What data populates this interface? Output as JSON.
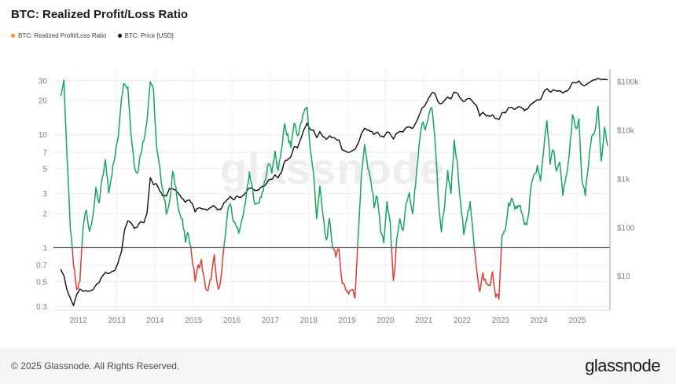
{
  "page": {
    "title": "BTC: Realized Profit/Loss Ratio",
    "watermark": "glassnode",
    "footer": {
      "copyright": "© 2025 Glassnode. All Rights Reserved.",
      "brand": "glassnode"
    }
  },
  "legend": {
    "items": [
      {
        "label": "BTC: Realized Profit/Loss Ratio",
        "color": "#f7931a"
      },
      {
        "label": "BTC: Price [USD]",
        "color": "#111111"
      }
    ]
  },
  "chart_data": {
    "type": "line",
    "title": "BTC: Realized Profit/Loss Ratio",
    "x_interval": "monthly",
    "x_start": 2011.54,
    "x_range": [
      2011.35,
      2025.85
    ],
    "x_ticks": [
      2012,
      2013,
      2014,
      2015,
      2016,
      2017,
      2018,
      2019,
      2020,
      2021,
      2022,
      2023,
      2024,
      2025
    ],
    "left_axis": {
      "label": "BTC: Realized Profit/Loss Ratio",
      "scale": "log",
      "domain": [
        0.28,
        38
      ],
      "ticks": [
        30,
        20,
        10,
        7,
        5,
        3,
        2,
        1,
        0.7,
        0.5,
        0.3
      ],
      "baseline": 1
    },
    "right_axis": {
      "label": "BTC: Price [USD]",
      "scale": "log",
      "domain": [
        2,
        181000
      ],
      "ticks": [
        {
          "label": "$100k",
          "value": 100000
        },
        {
          "label": "$10k",
          "value": 10000
        },
        {
          "label": "$1k",
          "value": 1000
        },
        {
          "label": "$100",
          "value": 100
        },
        {
          "label": "$10",
          "value": 10
        }
      ]
    },
    "series": [
      {
        "name": "BTC: Realized Profit/Loss Ratio",
        "axis": "left",
        "style": {
          "above_color": "#17a45f",
          "below_color": "#e23a33",
          "threshold": 1
        },
        "values": [
          22,
          30,
          6,
          1.5,
          0.7,
          0.42,
          0.5,
          1.6,
          2.3,
          1.3,
          1.9,
          3.2,
          2.4,
          4.2,
          5.8,
          3.2,
          4.6,
          6.5,
          10,
          22,
          30,
          26,
          10,
          5.5,
          4.5,
          7,
          9,
          14,
          30,
          24,
          7.5,
          4.8,
          3.2,
          2.1,
          2.4,
          4.6,
          3.4,
          2.1,
          1.7,
          1.15,
          1.35,
          0.85,
          0.52,
          0.68,
          0.75,
          0.48,
          0.4,
          0.55,
          0.82,
          0.44,
          0.5,
          0.95,
          1.9,
          2.6,
          1.7,
          1.5,
          1.4,
          1.9,
          2.9,
          4.4,
          3.2,
          2.3,
          2.6,
          3.1,
          3.9,
          5.8,
          4.8,
          6.8,
          4.6,
          7.5,
          12,
          9.5,
          7.8,
          13,
          9.8,
          12,
          15.5,
          18,
          7.5,
          4.6,
          1.9,
          3.4,
          1.9,
          1.15,
          1.7,
          1.05,
          0.88,
          0.92,
          0.5,
          0.44,
          0.4,
          0.43,
          0.37,
          1.3,
          4.2,
          8.5,
          5,
          3.8,
          2.4,
          2.9,
          1.4,
          1.15,
          2.4,
          1.7,
          0.48,
          1.1,
          1.7,
          1.4,
          2.4,
          2.9,
          1.9,
          3.8,
          7.5,
          13,
          11,
          15,
          17.5,
          9.5,
          2.8,
          1.4,
          2.4,
          4.8,
          2.9,
          8.5,
          5.5,
          2.4,
          1.4,
          1.9,
          2.4,
          1.25,
          0.68,
          0.4,
          0.58,
          0.48,
          0.46,
          0.58,
          0.38,
          0.36,
          1.25,
          1.45,
          2.4,
          2.7,
          2.1,
          2.5,
          2.2,
          1.55,
          1.7,
          3.3,
          4.3,
          5.2,
          3.8,
          7.5,
          14,
          5.5,
          7.5,
          4.8,
          5.5,
          2.9,
          4.2,
          6.5,
          15,
          11,
          13,
          3.8,
          2.9,
          5.5,
          9.5,
          11,
          17,
          5.5,
          11,
          8
        ]
      },
      {
        "name": "BTC: Price [USD]",
        "axis": "right",
        "style": {
          "color": "#0d0d0d"
        },
        "values": [
          14,
          10,
          5,
          3.5,
          2.5,
          4.2,
          5.5,
          5,
          4.9,
          5,
          5.1,
          6.5,
          7.5,
          10,
          12.2,
          11.2,
          12.4,
          13.4,
          20,
          33,
          93,
          139,
          128,
          97,
          106,
          135,
          127,
          203,
          1080,
          750,
          800,
          560,
          450,
          445,
          620,
          640,
          580,
          480,
          390,
          340,
          375,
          320,
          215,
          255,
          245,
          235,
          230,
          260,
          285,
          230,
          235,
          315,
          375,
          430,
          370,
          435,
          415,
          450,
          530,
          670,
          625,
          575,
          610,
          700,
          745,
          965,
          970,
          1180,
          1080,
          1350,
          2300,
          2480,
          2870,
          4700,
          4340,
          6450,
          10200,
          13900,
          10200,
          10300,
          6900,
          9250,
          7500,
          6400,
          7750,
          7000,
          6600,
          6300,
          4000,
          3740,
          3440,
          3820,
          4100,
          5320,
          8560,
          10800,
          10100,
          9600,
          8300,
          9150,
          7550,
          7200,
          9350,
          8550,
          6440,
          8620,
          9450,
          9140,
          11350,
          11650,
          10780,
          13800,
          19700,
          29000,
          33100,
          45200,
          58800,
          57750,
          37300,
          35000,
          41500,
          47150,
          43800,
          61300,
          57000,
          46200,
          38500,
          43200,
          45500,
          37650,
          31800,
          19900,
          23300,
          20050,
          19400,
          20500,
          17150,
          16550,
          23100,
          23150,
          28500,
          29250,
          27200,
          30480,
          29230,
          25930,
          26970,
          34650,
          37700,
          42270,
          42580,
          61200,
          71300,
          60640,
          67500,
          62680,
          64600,
          58970,
          63330,
          70200,
          96400,
          93430,
          102400,
          84400,
          82550,
          94200,
          104600,
          107100,
          115800,
          108200,
          114000,
          111000
        ]
      }
    ]
  }
}
